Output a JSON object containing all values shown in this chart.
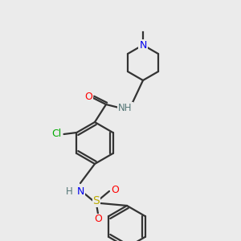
{
  "bg_color": "#ebebeb",
  "atom_colors": {
    "N": "#0000ee",
    "O": "#ff0000",
    "S": "#bbaa00",
    "Cl": "#00aa00",
    "C": "#333333",
    "H": "#557777"
  },
  "bond_color": "#333333",
  "bond_lw": 1.6,
  "ring_r": 26,
  "pip_r": 22
}
